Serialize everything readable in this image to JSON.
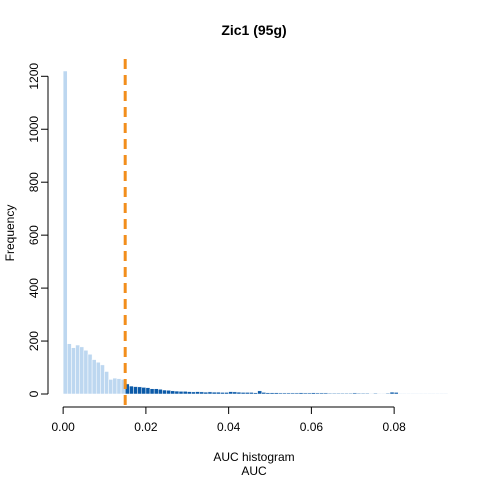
{
  "chart_data": {
    "type": "bar",
    "title": "Zic1 (95g)",
    "xlabel": "AUC histogram",
    "xlabel_line2": "AUC",
    "ylabel": "Frequency",
    "xlim": [
      -0.001,
      0.0935
    ],
    "ylim": [
      0,
      1220
    ],
    "x_ticks": [
      0.0,
      0.02,
      0.04,
      0.06,
      0.08
    ],
    "x_tick_labels": [
      "0.00",
      "0.02",
      "0.04",
      "0.06",
      "0.08"
    ],
    "y_ticks": [
      0,
      200,
      400,
      600,
      800,
      1000,
      1200
    ],
    "y_tick_labels": [
      "0",
      "200",
      "400",
      "600",
      "800",
      "1000",
      "1200"
    ],
    "bin_width": 0.001,
    "bin_start": 0.0,
    "threshold": 0.015,
    "colors": {
      "below_threshold": "#bdd7f0",
      "above_threshold": "#0b5aa8",
      "bar_edge": "#ffffff",
      "threshold_line": "#f28e1c"
    },
    "series": [
      {
        "values": [
          1220,
          190,
          175,
          185,
          178,
          165,
          150,
          130,
          120,
          110,
          85,
          55,
          60,
          58,
          55,
          38,
          30,
          28,
          27,
          25,
          24,
          20,
          20,
          18,
          15,
          14,
          12,
          11,
          10,
          10,
          9,
          8,
          9,
          8,
          7,
          8,
          7,
          7,
          6,
          6,
          9,
          8,
          7,
          6,
          6,
          6,
          5,
          12,
          6,
          5,
          5,
          5,
          4,
          4,
          4,
          4,
          4,
          5,
          4,
          4,
          5,
          4,
          4,
          4,
          3,
          3,
          3,
          3,
          3,
          3,
          4,
          3,
          3,
          3,
          2,
          3,
          2,
          2,
          3,
          7,
          6,
          2,
          2,
          2,
          2,
          2,
          2,
          2,
          2,
          2,
          2,
          2,
          2
        ]
      }
    ]
  }
}
